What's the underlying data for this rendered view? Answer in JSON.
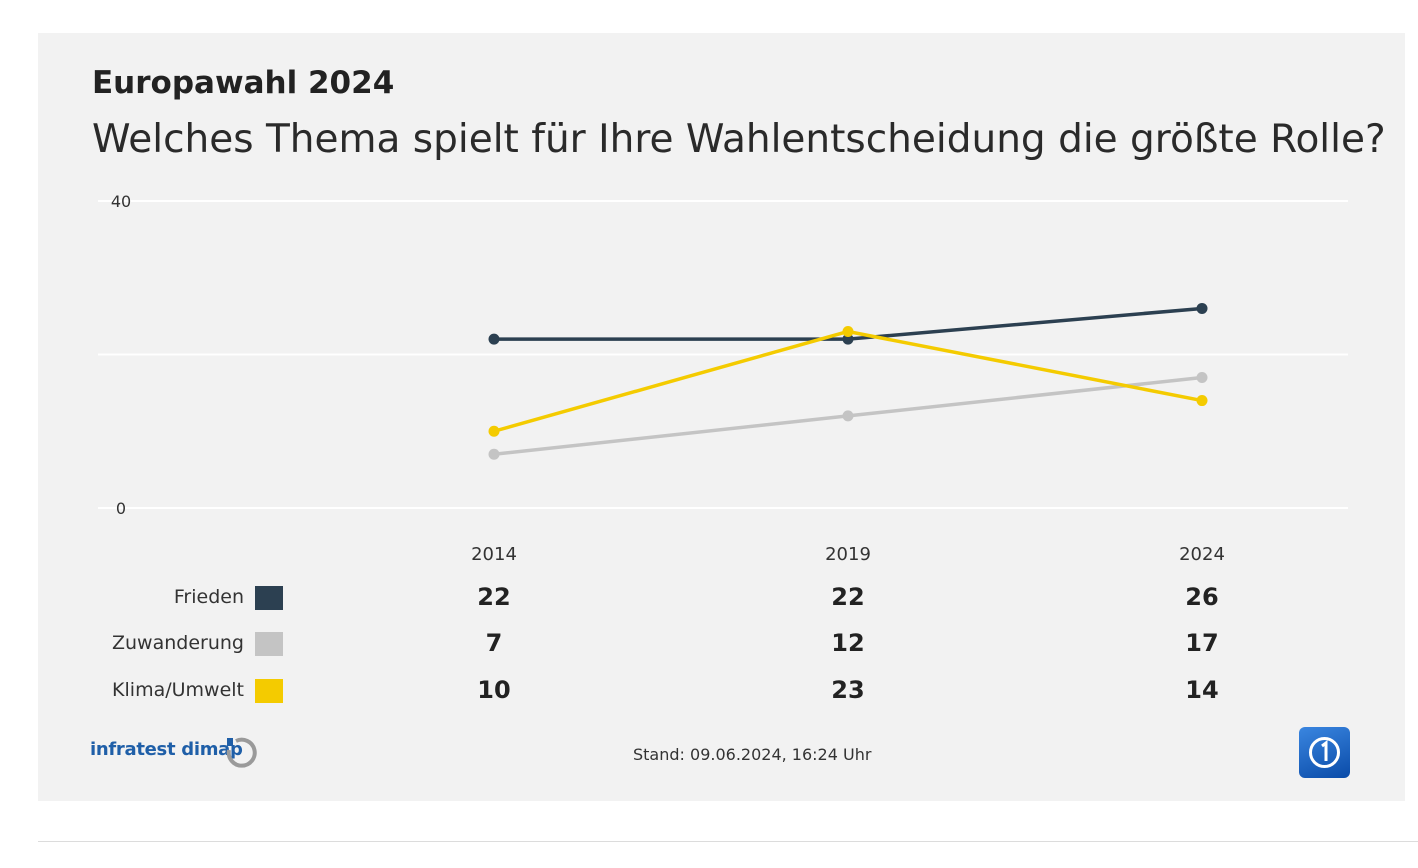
{
  "header": {
    "subtitle": "Europawahl 2024",
    "title": "Welches Thema spielt für Ihre Wahlentscheidung die größte Rolle?"
  },
  "chart_data": {
    "type": "line",
    "title": "Welches Thema spielt für Ihre Wahlentscheidung die größte Rolle?",
    "subtitle": "Europawahl 2024",
    "categories": [
      "2014",
      "2019",
      "2024"
    ],
    "ylim": [
      0,
      40
    ],
    "yticks": [
      "40",
      "0"
    ],
    "grid": true,
    "series": [
      {
        "name": "Frieden",
        "color": "#2c4051",
        "values": [
          22,
          22,
          26
        ]
      },
      {
        "name": "Zuwanderung",
        "color": "#c4c4c4",
        "values": [
          7,
          12,
          17
        ]
      },
      {
        "name": "Klima/Umwelt",
        "color": "#f4cb00",
        "values": [
          10,
          23,
          14
        ]
      }
    ]
  },
  "footer": {
    "source": "infratest dimap",
    "stand": "Stand:  09.06.2024, 16:24 Uhr"
  }
}
